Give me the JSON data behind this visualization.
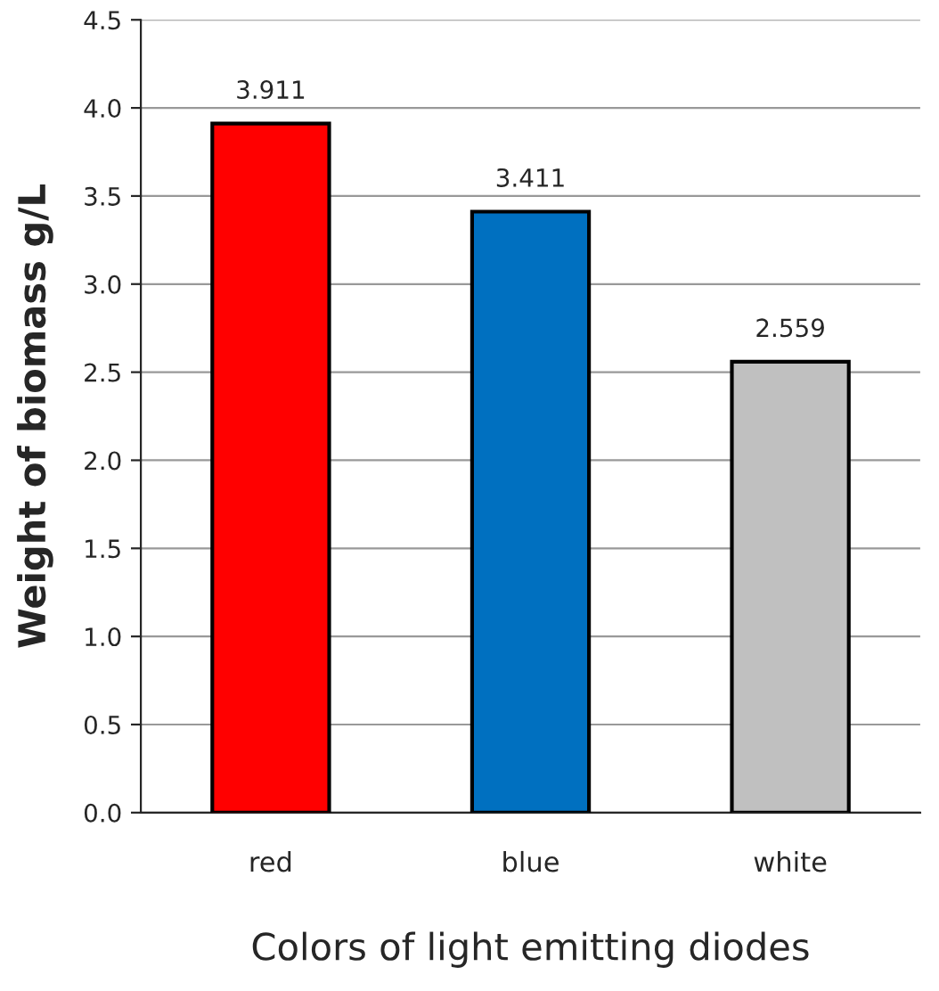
{
  "chart_data": {
    "type": "bar",
    "xlabel": "Colors of light emitting diodes",
    "ylabel": "Weight of biomass g/L",
    "categories": [
      "red",
      "blue",
      "white"
    ],
    "values": [
      3.911,
      3.411,
      2.559
    ],
    "colors": [
      "#ff0000",
      "#0070c0",
      "#c0c0c0"
    ],
    "data_labels": true,
    "ylim": [
      0,
      4.5
    ],
    "yticks": [
      {
        "value": 0,
        "label": "0.0"
      },
      {
        "value": 0.5,
        "label": "0.5"
      },
      {
        "value": 1,
        "label": "1.0"
      },
      {
        "value": 1.5,
        "label": "1.5"
      },
      {
        "value": 2,
        "label": "2.0"
      },
      {
        "value": 2.5,
        "label": "2.5"
      },
      {
        "value": 3,
        "label": "3.0"
      },
      {
        "value": 3.5,
        "label": "3.5"
      },
      {
        "value": 4,
        "label": "4.0"
      },
      {
        "value": 4.5,
        "label": "4.5"
      }
    ],
    "grid": "y"
  }
}
